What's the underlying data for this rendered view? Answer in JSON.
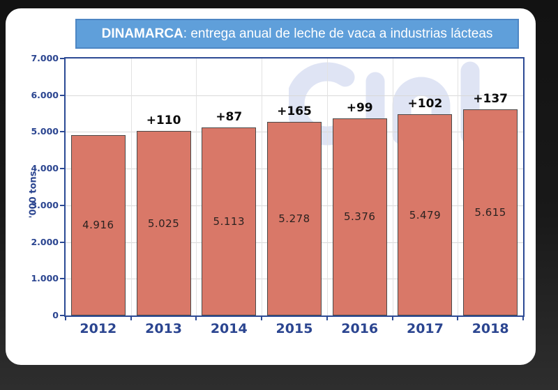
{
  "title": {
    "bold": "DINAMARCA",
    "rest": ": entrega anual de leche de vaca a industrias lácteas"
  },
  "watermark": {
    "text": "cinl"
  },
  "chart_data": {
    "type": "bar",
    "title": "DINAMARCA: entrega anual de leche de vaca a industrias lácteas",
    "categories": [
      "2012",
      "2013",
      "2014",
      "2015",
      "2016",
      "2017",
      "2018"
    ],
    "values": [
      4916,
      5025,
      5113,
      5278,
      5376,
      5479,
      5615
    ],
    "bar_value_labels": [
      "4.916",
      "5.025",
      "5.113",
      "5.278",
      "5.376",
      "5.479",
      "5.615"
    ],
    "delta_labels": [
      "",
      "+110",
      "+87",
      "+165",
      "+99",
      "+102",
      "+137"
    ],
    "xlabel": "",
    "ylabel": "'000 tons",
    "ylim": [
      0,
      7000
    ],
    "ytick_step": 1000,
    "ytick_labels": [
      "0",
      "1.000",
      "2.000",
      "3.000",
      "4.000",
      "5.000",
      "6.000",
      "7.000"
    ],
    "grid": true,
    "legend": "none",
    "colors": {
      "bar_fill": "#d97868",
      "bar_border": "#4a4a4a",
      "axis_border": "#2c4a94",
      "tick_label": "#2b4590",
      "banner_bg": "#5f9fda",
      "banner_border": "#4d86c4",
      "watermark": "#dfe4f4",
      "delta_text": "#0a0a0a",
      "value_text": "#2b2220"
    }
  }
}
